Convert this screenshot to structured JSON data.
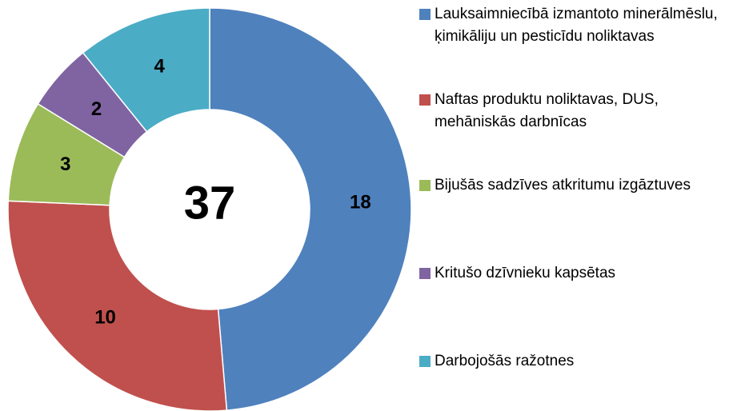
{
  "chart_data": {
    "type": "donut",
    "total": 37,
    "categories": [
      "Lauksaimniecībā izmantoto minerālmēslu, ķimikāliju un pesticīdu noliktavas",
      "Naftas produktu noliktavas, DUS, mehāniskās darbnīcas",
      "Bijušās sadzīves atkritumu izgāztuves",
      "Kritušo dzīvnieku kapsētas",
      "Darbojošās ražotnes"
    ],
    "values": [
      18,
      10,
      3,
      2,
      4
    ],
    "colors": [
      "#4f81bd",
      "#c0504d",
      "#9bbb59",
      "#8064a2",
      "#4bacc6"
    ],
    "legend": "right"
  }
}
